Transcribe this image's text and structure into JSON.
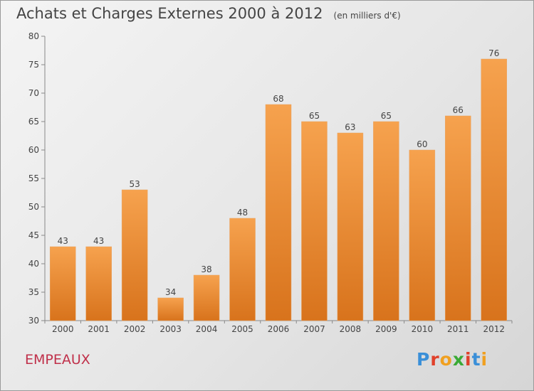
{
  "header": {
    "title": "Achats et Charges Externes 2000 à 2012",
    "unit": "(en milliers d'€)"
  },
  "footer": {
    "commune": "EMPEAUX",
    "brand": "Proxiti",
    "brand_colors": [
      "#3a8fd8",
      "#e0402a",
      "#f0a020",
      "#3aaa35",
      "#e0402a",
      "#3a8fd8",
      "#f0a020"
    ]
  },
  "colors": {
    "bar_top": "#f6a24e",
    "bar_bottom": "#d8731c",
    "axis": "#888888",
    "grid": "#d0d0d0",
    "text": "#444444"
  },
  "chart_data": {
    "type": "bar",
    "categories": [
      "2000",
      "2001",
      "2002",
      "2003",
      "2004",
      "2005",
      "2006",
      "2007",
      "2008",
      "2009",
      "2010",
      "2011",
      "2012"
    ],
    "values": [
      43,
      43,
      53,
      34,
      38,
      48,
      68,
      65,
      63,
      65,
      60,
      66,
      76
    ],
    "ylim": [
      30,
      80
    ],
    "yticks": [
      30,
      35,
      40,
      45,
      50,
      55,
      60,
      65,
      70,
      75,
      80
    ],
    "grid": false,
    "title": "Achats et Charges Externes 2000 à 2012",
    "xlabel": "",
    "ylabel": ""
  }
}
